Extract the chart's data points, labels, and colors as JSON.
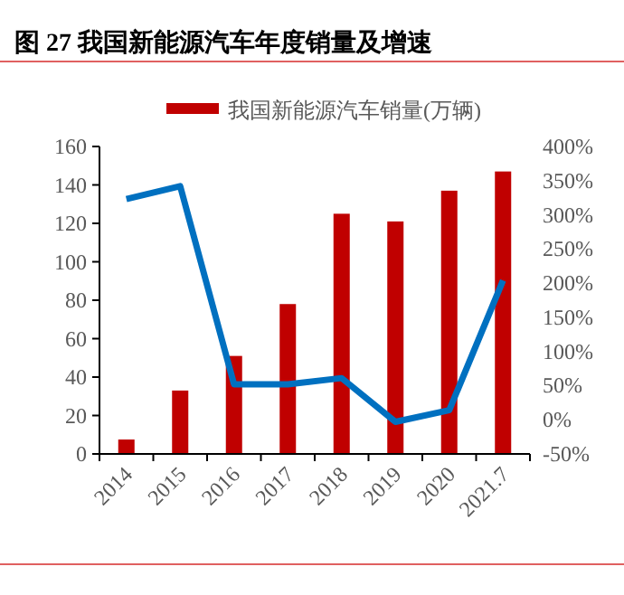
{
  "chart_data": {
    "type": "bar",
    "title": "图 27 我国新能源汽车年度销量及增速",
    "categories": [
      "2014",
      "2015",
      "2016",
      "2017",
      "2018",
      "2019",
      "2020",
      "2021.7"
    ],
    "series": [
      {
        "name": "我国新能源汽车销量(万辆)",
        "color": "#c00000",
        "values": [
          7.5,
          33,
          51,
          78,
          125,
          121,
          137,
          147
        ]
      },
      {
        "type": "line",
        "axis": "y2",
        "color": "#0070c0",
        "values": [
          323,
          342,
          52,
          52,
          61,
          -3,
          14,
          204
        ]
      }
    ],
    "ylim": [
      0,
      160
    ],
    "yticks": [
      0,
      20,
      40,
      60,
      80,
      100,
      120,
      140,
      160
    ],
    "y2lim": [
      -50,
      400
    ],
    "y2ticks": [
      {
        "value": -50,
        "label": "-50%"
      },
      {
        "value": 0,
        "label": "0%"
      },
      {
        "value": 50,
        "label": "50%"
      },
      {
        "value": 100,
        "label": "100%"
      },
      {
        "value": 150,
        "label": "150%"
      },
      {
        "value": 200,
        "label": "200%"
      },
      {
        "value": 250,
        "label": "250%"
      },
      {
        "value": 300,
        "label": "300%"
      },
      {
        "value": 350,
        "label": "350%"
      },
      {
        "value": 400,
        "label": "400%"
      }
    ],
    "legend": "top",
    "grid": false,
    "marker": "none",
    "line_style": "solid"
  }
}
